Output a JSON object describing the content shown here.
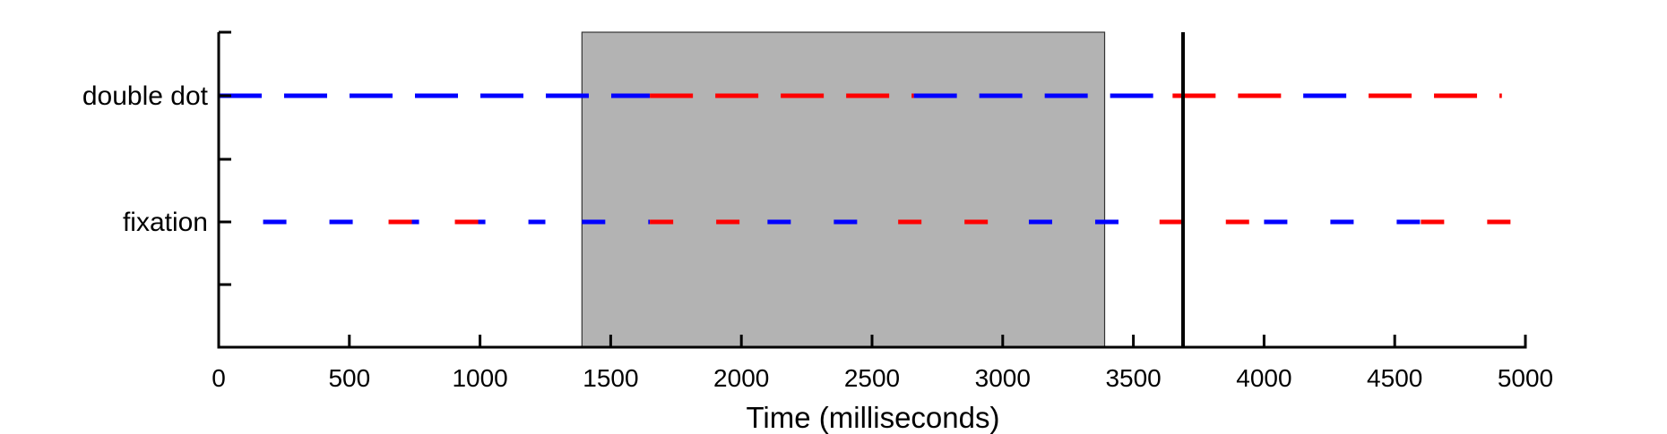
{
  "chart_data": {
    "type": "line",
    "title": "",
    "xlabel": "Time (milliseconds)",
    "ylabel": "",
    "xlim": [
      0,
      5000
    ],
    "xticks": [
      0,
      500,
      1000,
      1500,
      2000,
      2500,
      3000,
      3500,
      4000,
      4500,
      5000
    ],
    "y_categories": [
      "double dot",
      "fixation"
    ],
    "grid": false,
    "legend": "none",
    "shaded_region": {
      "x_start": 1390,
      "x_end": 3390,
      "color": "#b3b3b3"
    },
    "vertical_line": {
      "x": 3690,
      "color": "#000000"
    },
    "series": [
      {
        "category": "double dot",
        "style": "long-dash",
        "segments": [
          {
            "x_start": 0,
            "x_end": 1650,
            "color": "#0000ff"
          },
          {
            "x_start": 1650,
            "x_end": 2660,
            "color": "#ff0000"
          },
          {
            "x_start": 2660,
            "x_end": 3650,
            "color": "#0000ff"
          },
          {
            "x_start": 3650,
            "x_end": 4150,
            "color": "#ff0000"
          },
          {
            "x_start": 4150,
            "x_end": 4400,
            "color": "#0000ff"
          },
          {
            "x_start": 4400,
            "x_end": 4910,
            "color": "#ff0000"
          }
        ]
      },
      {
        "category": "fixation",
        "style": "short-dash",
        "segments": [
          {
            "x_start": 170,
            "x_end": 1250,
            "color": "#0000ff"
          },
          {
            "x_start": 650,
            "x_end": 1000,
            "color": "#ff0000"
          },
          {
            "x_start": 1390,
            "x_end": 1650,
            "color": "#0000ff"
          },
          {
            "x_start": 1650,
            "x_end": 2100,
            "color": "#ff0000"
          },
          {
            "x_start": 2100,
            "x_end": 2600,
            "color": "#0000ff"
          },
          {
            "x_start": 2600,
            "x_end": 3100,
            "color": "#ff0000"
          },
          {
            "x_start": 3100,
            "x_end": 3600,
            "color": "#0000ff"
          },
          {
            "x_start": 3600,
            "x_end": 4000,
            "color": "#ff0000"
          },
          {
            "x_start": 4000,
            "x_end": 4600,
            "color": "#0000ff"
          },
          {
            "x_start": 4600,
            "x_end": 5000,
            "color": "#ff0000"
          }
        ]
      }
    ]
  }
}
